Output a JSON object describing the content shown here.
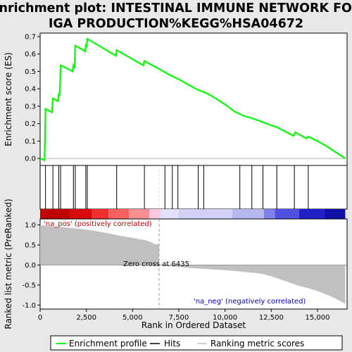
{
  "chart_data": {
    "type": "line",
    "title_line1": "Enrichment plot: INTESTINAL IMMUNE NETWORK FOR",
    "title_line2": "IGA PRODUCTION%KEGG%HSA04672",
    "xlabel": "Rank in Ordered Dataset",
    "ylabel_top": "Enrichment score (ES)",
    "ylabel_bottom": "Ranked list metric (PreRanked)",
    "xlim": [
      0,
      16600
    ],
    "x_ticks": [
      0,
      2500,
      5000,
      7500,
      10000,
      12500,
      15000
    ],
    "x_tick_labels": [
      "0",
      "2,500",
      "5,000",
      "7,500",
      "10,000",
      "12,500",
      "15,000"
    ],
    "es_ylim": [
      -0.04,
      0.72
    ],
    "es_ticks": [
      0.0,
      0.1,
      0.2,
      0.3,
      0.4,
      0.5,
      0.6,
      0.7
    ],
    "es_tick_labels": [
      "0.0",
      "0.1",
      "0.2",
      "0.3",
      "0.4",
      "0.5",
      "0.6",
      "0.7"
    ],
    "metric_ylim": [
      -1.1,
      1.15
    ],
    "metric_ticks": [
      1.0,
      0.5,
      0.0,
      -0.5,
      -1.0
    ],
    "metric_tick_labels": [
      "1.0",
      "0.5",
      "0.0",
      "-0.5",
      "-1.0"
    ],
    "es_curve": {
      "x": [
        0,
        240,
        290,
        640,
        690,
        960,
        1010,
        1060,
        1110,
        1760,
        1800,
        1860,
        1900,
        2440,
        2470,
        2520,
        2550,
        4100,
        4140,
        5580,
        5640,
        6500,
        7000,
        7500,
        8000,
        8500,
        9000,
        9500,
        10000,
        10500,
        11000,
        11500,
        12000,
        12500,
        12800,
        13200,
        13700,
        13800,
        14400,
        14500,
        15000,
        15500,
        16000,
        16500
      ],
      "y": [
        0.0,
        -0.01,
        0.285,
        0.265,
        0.345,
        0.33,
        0.37,
        0.365,
        0.535,
        0.5,
        0.535,
        0.525,
        0.648,
        0.615,
        0.65,
        0.645,
        0.687,
        0.59,
        0.622,
        0.535,
        0.56,
        0.51,
        0.48,
        0.455,
        0.425,
        0.395,
        0.375,
        0.345,
        0.31,
        0.27,
        0.245,
        0.23,
        0.21,
        0.19,
        0.18,
        0.158,
        0.13,
        0.15,
        0.115,
        0.125,
        0.1,
        0.07,
        0.035,
        0.0
      ]
    },
    "hits": [
      290,
      690,
      1010,
      1110,
      1800,
      1900,
      2470,
      2550,
      4140,
      5640,
      6750,
      7150,
      7450,
      8550,
      8850,
      10800,
      11450,
      12050,
      12800,
      13750,
      14500
    ],
    "metric_curve": {
      "x": [
        0,
        300,
        800,
        1500,
        2200,
        3000,
        3600,
        4200,
        4700,
        5200,
        5700,
        6000,
        6200,
        6435,
        7000,
        8000,
        9000,
        10000,
        11000,
        12000,
        12500,
        13000,
        13500,
        14000,
        14500,
        15000,
        15500,
        16000,
        16300,
        16500
      ],
      "y": [
        1.0,
        0.98,
        0.96,
        0.93,
        0.9,
        0.85,
        0.8,
        0.74,
        0.7,
        0.66,
        0.62,
        0.57,
        0.52,
        0.0,
        -0.03,
        -0.07,
        -0.1,
        -0.13,
        -0.17,
        -0.22,
        -0.28,
        -0.36,
        -0.44,
        -0.52,
        -0.58,
        -0.65,
        -0.74,
        -0.84,
        -0.92,
        -0.97
      ]
    },
    "zero_cross_rank": 6435,
    "zero_cross_label": "Zero cross at 6435",
    "pos_label": "'na_pos' (positively correlated)",
    "neg_label": "'na_neg' (negatively correlated)",
    "legend": [
      {
        "name": "Enrichment profile",
        "color": "#00ff00"
      },
      {
        "name": "Hits",
        "color": "#000000"
      },
      {
        "name": "Ranking metric scores",
        "color": "#c0c0c0"
      }
    ],
    "heatbar_colors": [
      "#c00000",
      "#d80a0a",
      "#f03030",
      "#f86060",
      "#fc9090",
      "#ffc8e0",
      "#e0e0ff",
      "#d0d0f8",
      "#b8b8f0",
      "#8080e8",
      "#5050e0",
      "#2020c8",
      "#1010a8"
    ],
    "heatbar_breaks": [
      0,
      1600,
      2800,
      3700,
      4800,
      5900,
      6500,
      7500,
      10400,
      12100,
      12700,
      14000,
      15400,
      16500
    ],
    "colors": {
      "es_line": "#00ff00",
      "metric_fill": "#c0c0c0",
      "zero_line": "#a0a0a0",
      "frame": "#000000",
      "bg": "#e8e8e8"
    }
  }
}
